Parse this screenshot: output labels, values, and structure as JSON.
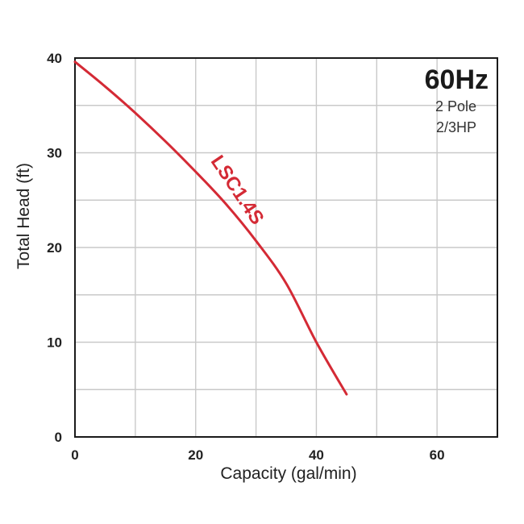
{
  "chart_data": {
    "type": "line",
    "xlabel": "Capacity  (gal/min)",
    "ylabel": "Total  Head  (ft)",
    "xlim": [
      0,
      70
    ],
    "ylim": [
      0,
      40
    ],
    "x_ticks": [
      0,
      20,
      40,
      60
    ],
    "y_ticks": [
      0,
      10,
      20,
      30,
      40
    ],
    "grid": true,
    "grid_x_step": 10,
    "grid_y_step": 5,
    "annotations": {
      "frequency": "60Hz",
      "poles": "2 Pole",
      "power": "2/3HP"
    },
    "series": [
      {
        "name": "LSC1.4S",
        "color": "#d42a35",
        "x": [
          0,
          5,
          10,
          15,
          20,
          25,
          30,
          35,
          40,
          45
        ],
        "y": [
          39.6,
          37.0,
          34.2,
          31.2,
          28.0,
          24.6,
          20.7,
          16.2,
          10.0,
          4.5
        ]
      }
    ]
  }
}
